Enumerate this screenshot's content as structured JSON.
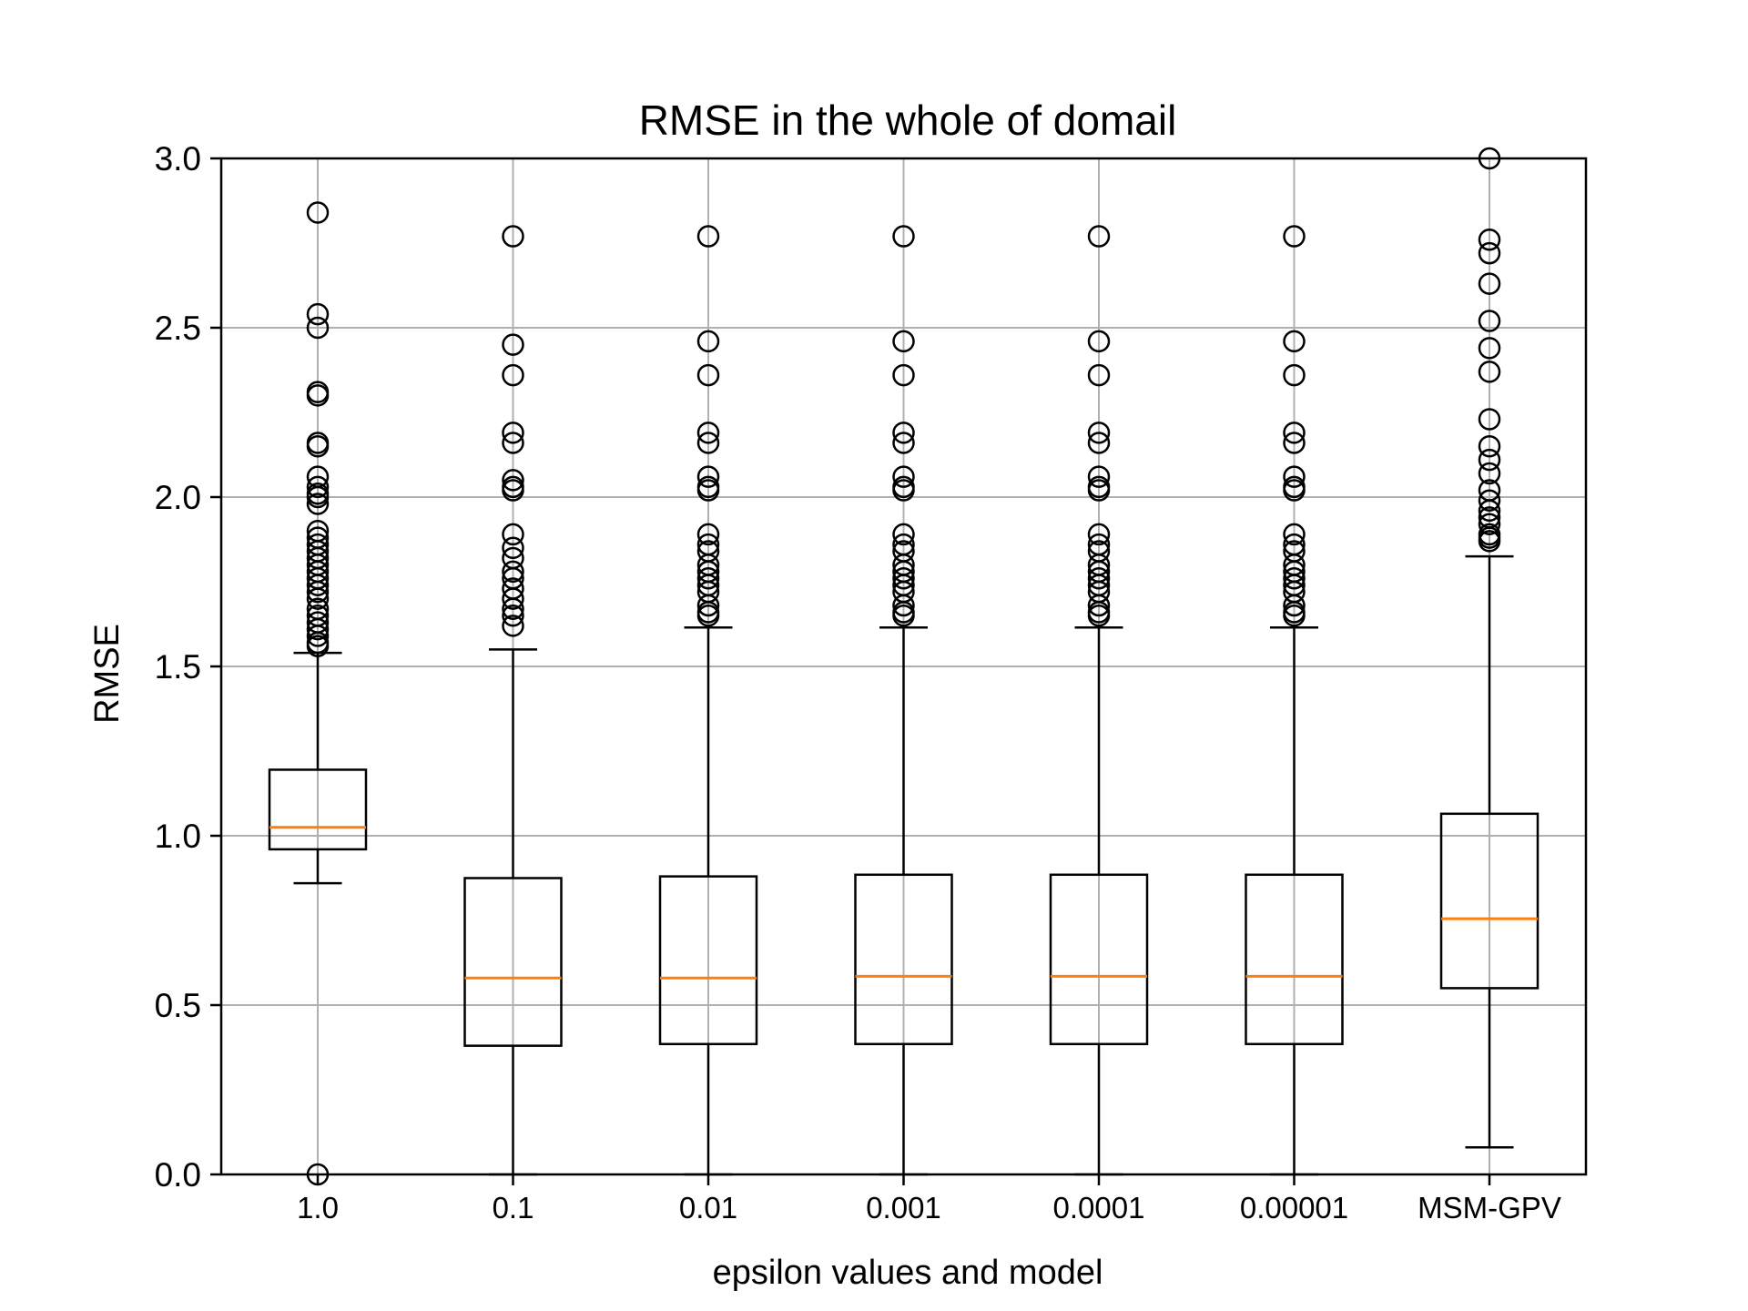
{
  "chart_data": {
    "type": "boxplot",
    "title": "RMSE in the whole of domail",
    "xlabel": "epsilon values and model",
    "ylabel": "RMSE",
    "ylim": [
      0,
      3.0
    ],
    "yticks": [
      "0.0",
      "0.5",
      "1.0",
      "1.5",
      "2.0",
      "2.5",
      "3.0"
    ],
    "categories": [
      "1.0",
      "0.1",
      "0.01",
      "0.001",
      "0.0001",
      "0.00001",
      "MSM-GPV"
    ],
    "grid": true,
    "colors": {
      "box": "#000000",
      "median": "#ff7f0e",
      "grid": "#b0b0b0"
    },
    "boxes": [
      {
        "label": "1.0",
        "whisker_low": 0.86,
        "q1": 0.96,
        "median": 1.025,
        "q3": 1.195,
        "whisker_high": 1.54,
        "fliers": [
          0.0,
          2.84,
          2.54,
          2.5,
          2.31,
          2.3,
          2.16,
          2.15,
          2.06,
          2.03,
          2.01,
          2.0,
          1.98,
          1.9,
          1.88,
          1.86,
          1.84,
          1.82,
          1.8,
          1.78,
          1.76,
          1.74,
          1.72,
          1.7,
          1.67,
          1.65,
          1.63,
          1.61,
          1.59,
          1.57,
          1.56
        ]
      },
      {
        "label": "0.1",
        "whisker_low": 0.0,
        "q1": 0.38,
        "median": 0.58,
        "q3": 0.875,
        "whisker_high": 1.55,
        "fliers": [
          2.77,
          2.45,
          2.36,
          2.19,
          2.16,
          2.05,
          2.03,
          2.02,
          1.89,
          1.85,
          1.82,
          1.78,
          1.76,
          1.73,
          1.7,
          1.67,
          1.65,
          1.62
        ]
      },
      {
        "label": "0.01",
        "whisker_low": 0.0,
        "q1": 0.385,
        "median": 0.58,
        "q3": 0.88,
        "whisker_high": 1.615,
        "fliers": [
          2.77,
          2.46,
          2.36,
          2.19,
          2.16,
          2.06,
          2.03,
          2.02,
          1.89,
          1.86,
          1.84,
          1.8,
          1.78,
          1.76,
          1.74,
          1.72,
          1.68,
          1.66,
          1.65
        ]
      },
      {
        "label": "0.001",
        "whisker_low": 0.0,
        "q1": 0.385,
        "median": 0.585,
        "q3": 0.885,
        "whisker_high": 1.615,
        "fliers": [
          2.77,
          2.46,
          2.36,
          2.19,
          2.16,
          2.06,
          2.03,
          2.02,
          1.89,
          1.86,
          1.84,
          1.8,
          1.78,
          1.76,
          1.74,
          1.72,
          1.68,
          1.66,
          1.65
        ]
      },
      {
        "label": "0.0001",
        "whisker_low": 0.0,
        "q1": 0.385,
        "median": 0.585,
        "q3": 0.885,
        "whisker_high": 1.615,
        "fliers": [
          2.77,
          2.46,
          2.36,
          2.19,
          2.16,
          2.06,
          2.03,
          2.02,
          1.89,
          1.86,
          1.84,
          1.8,
          1.78,
          1.76,
          1.74,
          1.72,
          1.68,
          1.66,
          1.65
        ]
      },
      {
        "label": "0.00001",
        "whisker_low": 0.0,
        "q1": 0.385,
        "median": 0.585,
        "q3": 0.885,
        "whisker_high": 1.615,
        "fliers": [
          2.77,
          2.46,
          2.36,
          2.19,
          2.16,
          2.06,
          2.03,
          2.02,
          1.89,
          1.86,
          1.84,
          1.8,
          1.78,
          1.76,
          1.74,
          1.72,
          1.68,
          1.66,
          1.65
        ]
      },
      {
        "label": "MSM-GPV",
        "whisker_low": 0.08,
        "q1": 0.55,
        "median": 0.755,
        "q3": 1.065,
        "whisker_high": 1.825,
        "fliers": [
          3.0,
          2.76,
          2.72,
          2.63,
          2.52,
          2.44,
          2.37,
          2.23,
          2.15,
          2.11,
          2.07,
          2.02,
          1.99,
          1.96,
          1.94,
          1.92,
          1.89,
          1.88,
          1.87
        ]
      }
    ]
  }
}
